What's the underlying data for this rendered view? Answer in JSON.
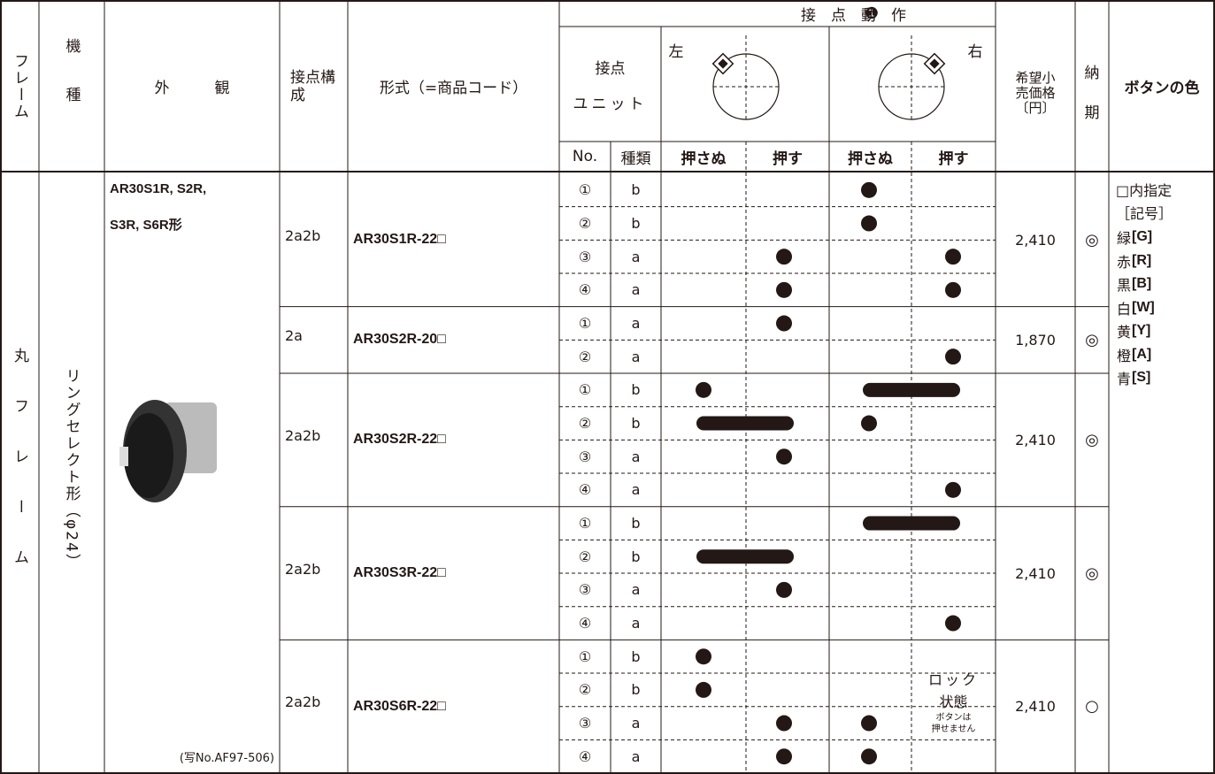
{
  "header": {
    "frame": "フレーム",
    "kind": "機種",
    "appearance": "外　　　観",
    "contact_config": "接点構成",
    "model_code": "形式（=商品コード）",
    "operation": "接　点　動　作",
    "operation_marker": "❶",
    "contact_unit_1": "接点",
    "contact_unit_2": "ユニット",
    "left": "左",
    "right": "右",
    "no": "No.",
    "type": "種類",
    "left_not_pressed": "押さぬ",
    "left_pressed": "押す",
    "right_not_pressed": "押さぬ",
    "right_pressed": "押す",
    "price": "希望小売価格〔円〕",
    "delivery_1": "納",
    "delivery_2": "期",
    "color": "ボタンの色"
  },
  "body": {
    "frame": "丸フレーム",
    "series": "リングセレクト形（φ24）",
    "appearance_line_1": "AR30S1R,  S2R,",
    "appearance_line_2": "S3R,  S6R形",
    "photo_note": "(写No.AF97-506)",
    "lock_text_1": "ロック",
    "lock_text_2": "状態",
    "lock_note_1": "ボタンは",
    "lock_note_2": "押せません",
    "groups": [
      {
        "config": "2a2b",
        "code": "AR30S1R-22□",
        "price": "2,410",
        "delivery": "◎",
        "rows": [
          {
            "no": "①",
            "type": "b"
          },
          {
            "no": "②",
            "type": "b"
          },
          {
            "no": "③",
            "type": "a"
          },
          {
            "no": "④",
            "type": "a"
          }
        ]
      },
      {
        "config": "2a",
        "code": "AR30S2R-20□",
        "price": "1,870",
        "delivery": "◎",
        "rows": [
          {
            "no": "①",
            "type": "a"
          },
          {
            "no": "②",
            "type": "a"
          }
        ]
      },
      {
        "config": "2a2b",
        "code": "AR30S2R-22□",
        "price": "2,410",
        "delivery": "◎",
        "rows": [
          {
            "no": "①",
            "type": "b"
          },
          {
            "no": "②",
            "type": "b"
          },
          {
            "no": "③",
            "type": "a"
          },
          {
            "no": "④",
            "type": "a"
          }
        ]
      },
      {
        "config": "2a2b",
        "code": "AR30S3R-22□",
        "price": "2,410",
        "delivery": "◎",
        "rows": [
          {
            "no": "①",
            "type": "b"
          },
          {
            "no": "②",
            "type": "b"
          },
          {
            "no": "③",
            "type": "a"
          },
          {
            "no": "④",
            "type": "a"
          }
        ]
      },
      {
        "config": "2a2b",
        "code": "AR30S6R-22□",
        "price": "2,410",
        "delivery": "○",
        "rows": [
          {
            "no": "①",
            "type": "b"
          },
          {
            "no": "②",
            "type": "b"
          },
          {
            "no": "③",
            "type": "a"
          },
          {
            "no": "④",
            "type": "a"
          }
        ]
      }
    ],
    "colors_note_1": "□内指定",
    "colors_note_2": "［記号］",
    "colors": [
      {
        "name": "緑",
        "code": "[G]"
      },
      {
        "name": "赤",
        "code": "[R]"
      },
      {
        "name": "黒",
        "code": "[B]"
      },
      {
        "name": "白",
        "code": "[W]"
      },
      {
        "name": "黄",
        "code": "[Y]"
      },
      {
        "name": "橙",
        "code": "[A]"
      },
      {
        "name": "青",
        "code": "[S]"
      }
    ]
  }
}
